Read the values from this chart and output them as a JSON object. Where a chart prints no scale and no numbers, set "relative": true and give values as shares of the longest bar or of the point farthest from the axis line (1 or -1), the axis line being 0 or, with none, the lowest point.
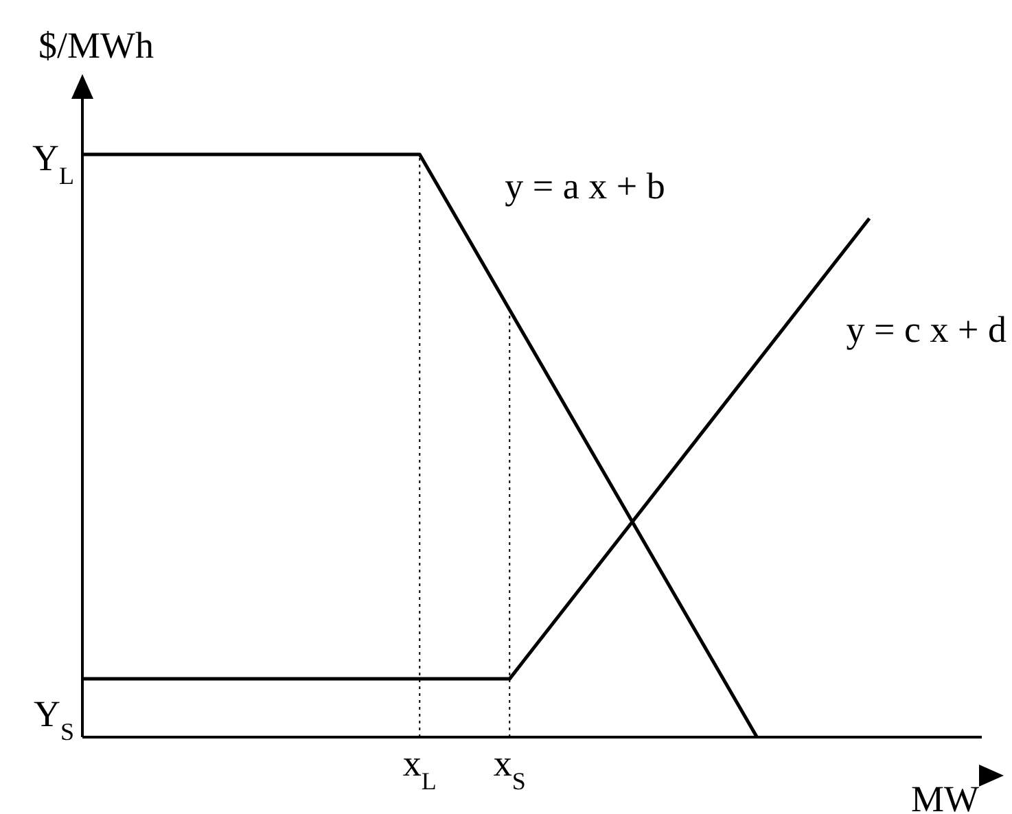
{
  "chart_data": {
    "type": "line",
    "xlabel": "MW",
    "ylabel": "$/MWh",
    "relative": true,
    "categories": [
      null,
      null,
      null,
      null,
      null,
      null,
      null,
      null,
      null,
      null,
      null,
      null,
      null,
      null,
      null,
      "x$_{L}$",
      null,
      null,
      null,
      "x$_{S}$",
      null,
      null,
      null,
      null,
      null,
      null,
      null,
      null,
      null,
      null,
      null,
      null,
      null,
      null,
      null,
      null,
      null,
      null,
      null,
      null,
      null
    ],
    "series": [
      {
        "name": "y = a x + b",
        "color": "#000000",
        "values": [
          1,
          null,
          null,
          null,
          null,
          null,
          null,
          null,
          null,
          null,
          null,
          null,
          null,
          null,
          null,
          1,
          null,
          null,
          null,
          null,
          null,
          null,
          null,
          null,
          null,
          null,
          null,
          null,
          null,
          null,
          0,
          null,
          null,
          null,
          null,
          null,
          null,
          null,
          null,
          null,
          null
        ]
      },
      {
        "name": "y = c x + d",
        "color": "#000000",
        "values": [
          0.1,
          null,
          null,
          null,
          null,
          null,
          null,
          null,
          null,
          null,
          null,
          null,
          null,
          null,
          null,
          null,
          null,
          null,
          null,
          0.1,
          null,
          null,
          null,
          null,
          null,
          null,
          null,
          null,
          null,
          null,
          null,
          null,
          null,
          null,
          null,
          0.89,
          null,
          null,
          null,
          null,
          null
        ]
      }
    ],
    "annotations": [
      "Y$_{L}$",
      "Y$_{S}$"
    ],
    "ref_lines": [
      {
        "axis": "x",
        "value": "x$_{L}$",
        "line_style": "dotted"
      },
      {
        "axis": "x",
        "value": "x$_{S}$",
        "line_style": "dotted"
      }
    ],
    "grid": false,
    "legend": false,
    "marker": "none",
    "line_style": "solid"
  }
}
